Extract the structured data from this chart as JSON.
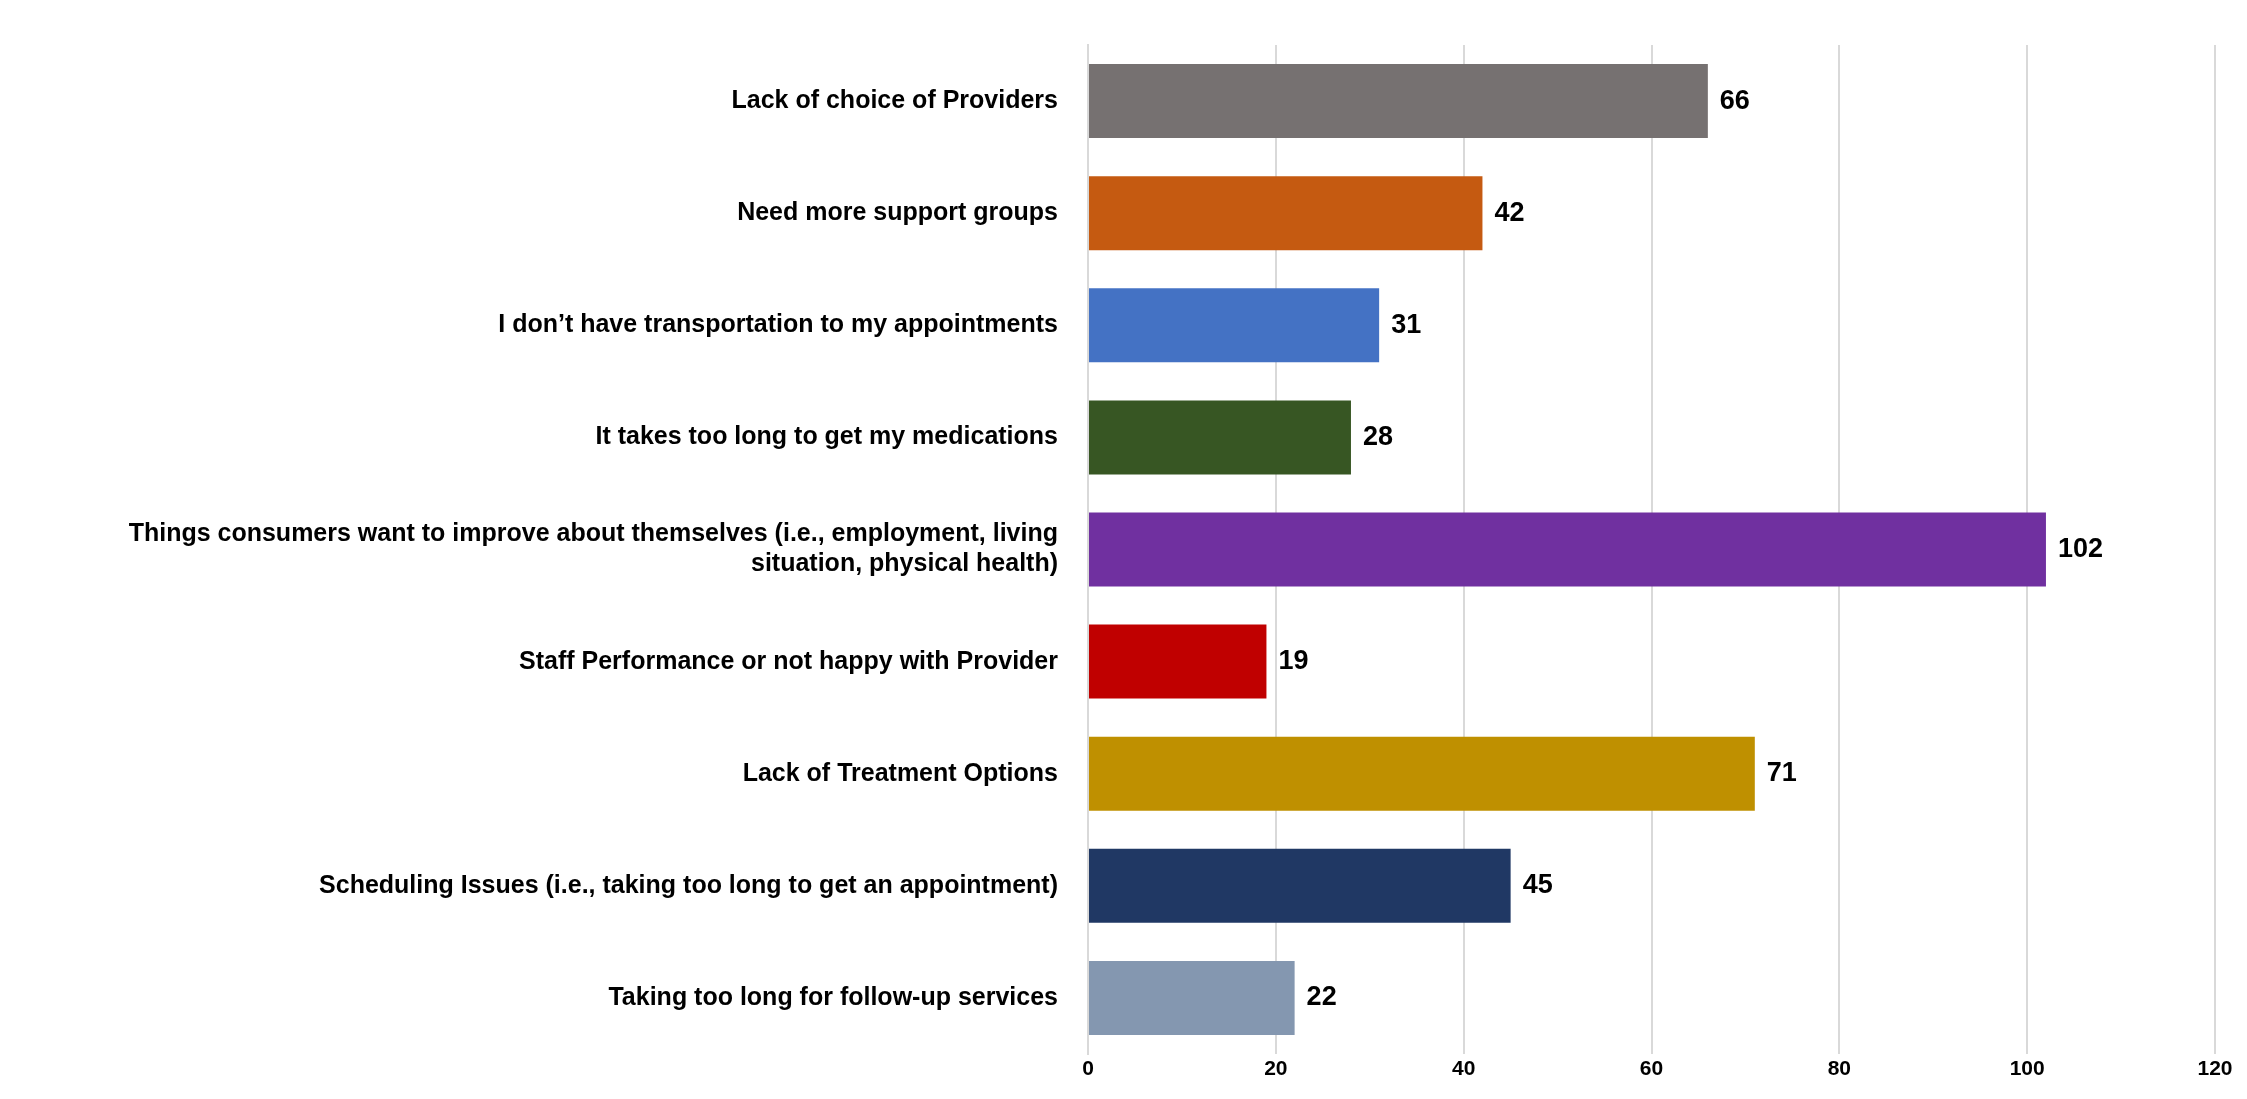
{
  "chart_data": {
    "type": "bar",
    "orientation": "horizontal",
    "categories": [
      "Lack of choice of Providers",
      "Need more support groups",
      "I don’t have transportation to my appointments",
      "It takes too long to get my medications",
      "Things consumers want to improve about themselves (i.e., employment, living situation, physical health)",
      "Staff Performance or not happy with Provider",
      "Lack of Treatment Options",
      "Scheduling Issues (i.e., taking too long to get an appointment)",
      "Taking too long for follow-up services"
    ],
    "values": [
      66,
      42,
      31,
      28,
      102,
      19,
      71,
      45,
      22
    ],
    "colors": [
      "#767171",
      "#c55a11",
      "#4472c4",
      "#375623",
      "#7030a0",
      "#c00000",
      "#bf9000",
      "#203864",
      "#8497b0"
    ],
    "xlim": [
      0,
      120
    ],
    "xticks": [
      0,
      20,
      40,
      60,
      80,
      100,
      120
    ],
    "grid": "x",
    "data_labels": true,
    "legend": false
  }
}
